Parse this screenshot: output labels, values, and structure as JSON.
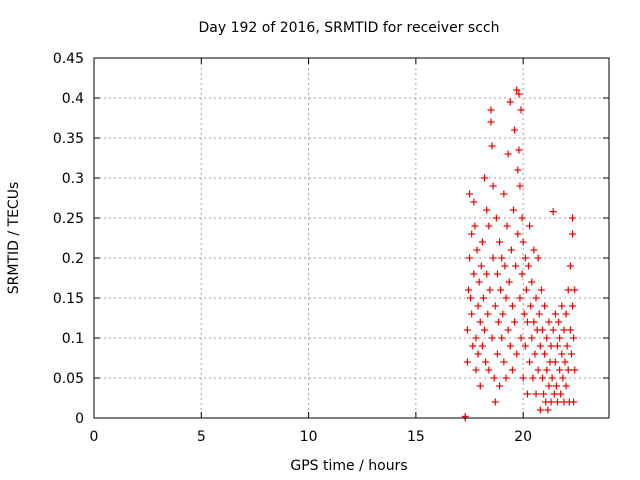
{
  "chart_data": {
    "type": "scatter",
    "title": "Day 192 of 2016, SRMTID for receiver scch",
    "xlabel": "GPS time / hours",
    "ylabel": "SRMTID / TECUs",
    "xlim": [
      0,
      24
    ],
    "ylim": [
      0,
      0.45
    ],
    "xticks": [
      0,
      5,
      10,
      15,
      20
    ],
    "yticks": [
      0,
      0.05,
      0.1,
      0.15,
      0.2,
      0.25,
      0.3,
      0.35,
      0.4,
      0.45
    ],
    "xtick_labels": [
      "0",
      "5",
      "10",
      "15",
      "20"
    ],
    "ytick_labels": [
      "0",
      "0.05",
      "0.1",
      "0.15",
      "0.2",
      "0.25",
      "0.3",
      "0.35",
      "0.4",
      "0.45"
    ],
    "grid": true,
    "marker": "+",
    "series": [
      {
        "name": "SRMTID",
        "color": "#ee0000",
        "points": [
          [
            17.3,
            0.0
          ],
          [
            17.3,
            0.002
          ],
          [
            17.4,
            0.07
          ],
          [
            17.4,
            0.11
          ],
          [
            17.45,
            0.16
          ],
          [
            17.5,
            0.28
          ],
          [
            17.5,
            0.2
          ],
          [
            17.55,
            0.15
          ],
          [
            17.6,
            0.23
          ],
          [
            17.6,
            0.13
          ],
          [
            17.65,
            0.09
          ],
          [
            17.7,
            0.27
          ],
          [
            17.7,
            0.18
          ],
          [
            17.75,
            0.24
          ],
          [
            17.8,
            0.1
          ],
          [
            17.8,
            0.06
          ],
          [
            17.85,
            0.21
          ],
          [
            17.9,
            0.14
          ],
          [
            17.9,
            0.08
          ],
          [
            17.95,
            0.17
          ],
          [
            18.0,
            0.12
          ],
          [
            18.0,
            0.04
          ],
          [
            18.05,
            0.19
          ],
          [
            18.1,
            0.22
          ],
          [
            18.1,
            0.09
          ],
          [
            18.15,
            0.15
          ],
          [
            18.2,
            0.11
          ],
          [
            18.2,
            0.3
          ],
          [
            18.25,
            0.07
          ],
          [
            18.3,
            0.26
          ],
          [
            18.3,
            0.18
          ],
          [
            18.35,
            0.13
          ],
          [
            18.4,
            0.06
          ],
          [
            18.4,
            0.24
          ],
          [
            18.45,
            0.16
          ],
          [
            18.5,
            0.385
          ],
          [
            18.5,
            0.37
          ],
          [
            18.55,
            0.34
          ],
          [
            18.55,
            0.1
          ],
          [
            18.6,
            0.29
          ],
          [
            18.6,
            0.2
          ],
          [
            18.65,
            0.05
          ],
          [
            18.7,
            0.02
          ],
          [
            18.7,
            0.14
          ],
          [
            18.75,
            0.25
          ],
          [
            18.8,
            0.18
          ],
          [
            18.8,
            0.08
          ],
          [
            18.85,
            0.12
          ],
          [
            18.9,
            0.22
          ],
          [
            18.9,
            0.04
          ],
          [
            18.95,
            0.16
          ],
          [
            19.0,
            0.1
          ],
          [
            19.0,
            0.2
          ],
          [
            19.05,
            0.13
          ],
          [
            19.1,
            0.07
          ],
          [
            19.1,
            0.28
          ],
          [
            19.15,
            0.19
          ],
          [
            19.2,
            0.15
          ],
          [
            19.2,
            0.05
          ],
          [
            19.25,
            0.24
          ],
          [
            19.3,
            0.11
          ],
          [
            19.3,
            0.33
          ],
          [
            19.35,
            0.17
          ],
          [
            19.4,
            0.395
          ],
          [
            19.4,
            0.09
          ],
          [
            19.45,
            0.21
          ],
          [
            19.5,
            0.14
          ],
          [
            19.5,
            0.06
          ],
          [
            19.55,
            0.26
          ],
          [
            19.6,
            0.12
          ],
          [
            19.6,
            0.36
          ],
          [
            19.65,
            0.19
          ],
          [
            19.7,
            0.41
          ],
          [
            19.7,
            0.08
          ],
          [
            19.75,
            0.31
          ],
          [
            19.75,
            0.23
          ],
          [
            19.8,
            0.405
          ],
          [
            19.8,
            0.335
          ],
          [
            19.85,
            0.29
          ],
          [
            19.85,
            0.15
          ],
          [
            19.9,
            0.385
          ],
          [
            19.9,
            0.1
          ],
          [
            19.95,
            0.25
          ],
          [
            19.95,
            0.18
          ],
          [
            20.0,
            0.22
          ],
          [
            20.0,
            0.05
          ],
          [
            20.05,
            0.13
          ],
          [
            20.1,
            0.2
          ],
          [
            20.1,
            0.09
          ],
          [
            20.15,
            0.16
          ],
          [
            20.2,
            0.12
          ],
          [
            20.2,
            0.03
          ],
          [
            20.25,
            0.19
          ],
          [
            20.3,
            0.07
          ],
          [
            20.3,
            0.24
          ],
          [
            20.35,
            0.14
          ],
          [
            20.4,
            0.1
          ],
          [
            20.4,
            0.17
          ],
          [
            20.45,
            0.05
          ],
          [
            20.5,
            0.21
          ],
          [
            20.5,
            0.12
          ],
          [
            20.55,
            0.08
          ],
          [
            20.6,
            0.15
          ],
          [
            20.6,
            0.03
          ],
          [
            20.65,
            0.11
          ],
          [
            20.7,
            0.06
          ],
          [
            20.7,
            0.2
          ],
          [
            20.75,
            0.13
          ],
          [
            20.8,
            0.09
          ],
          [
            20.8,
            0.01
          ],
          [
            20.85,
            0.16
          ],
          [
            20.9,
            0.05
          ],
          [
            20.9,
            0.11
          ],
          [
            20.95,
            0.03
          ],
          [
            21.0,
            0.08
          ],
          [
            21.0,
            0.14
          ],
          [
            21.05,
            0.02
          ],
          [
            21.1,
            0.06
          ],
          [
            21.1,
            0.1
          ],
          [
            21.15,
            0.01
          ],
          [
            21.2,
            0.04
          ],
          [
            21.2,
            0.12
          ],
          [
            21.25,
            0.07
          ],
          [
            21.3,
            0.02
          ],
          [
            21.3,
            0.09
          ],
          [
            21.35,
            0.05
          ],
          [
            21.4,
            0.258
          ],
          [
            21.4,
            0.11
          ],
          [
            21.45,
            0.03
          ],
          [
            21.5,
            0.07
          ],
          [
            21.5,
            0.13
          ],
          [
            21.55,
            0.04
          ],
          [
            21.6,
            0.09
          ],
          [
            21.6,
            0.02
          ],
          [
            21.65,
            0.12
          ],
          [
            21.7,
            0.06
          ],
          [
            21.7,
            0.1
          ],
          [
            21.75,
            0.03
          ],
          [
            21.8,
            0.08
          ],
          [
            21.8,
            0.14
          ],
          [
            21.85,
            0.05
          ],
          [
            21.9,
            0.11
          ],
          [
            21.9,
            0.02
          ],
          [
            21.95,
            0.07
          ],
          [
            22.0,
            0.13
          ],
          [
            22.0,
            0.04
          ],
          [
            22.05,
            0.09
          ],
          [
            22.1,
            0.06
          ],
          [
            22.1,
            0.16
          ],
          [
            22.15,
            0.02
          ],
          [
            22.2,
            0.11
          ],
          [
            22.2,
            0.19
          ],
          [
            22.25,
            0.08
          ],
          [
            22.3,
            0.25
          ],
          [
            22.3,
            0.23
          ],
          [
            22.3,
            0.14
          ],
          [
            22.35,
            0.1
          ],
          [
            22.35,
            0.02
          ],
          [
            22.4,
            0.06
          ],
          [
            22.4,
            0.16
          ]
        ]
      }
    ]
  }
}
